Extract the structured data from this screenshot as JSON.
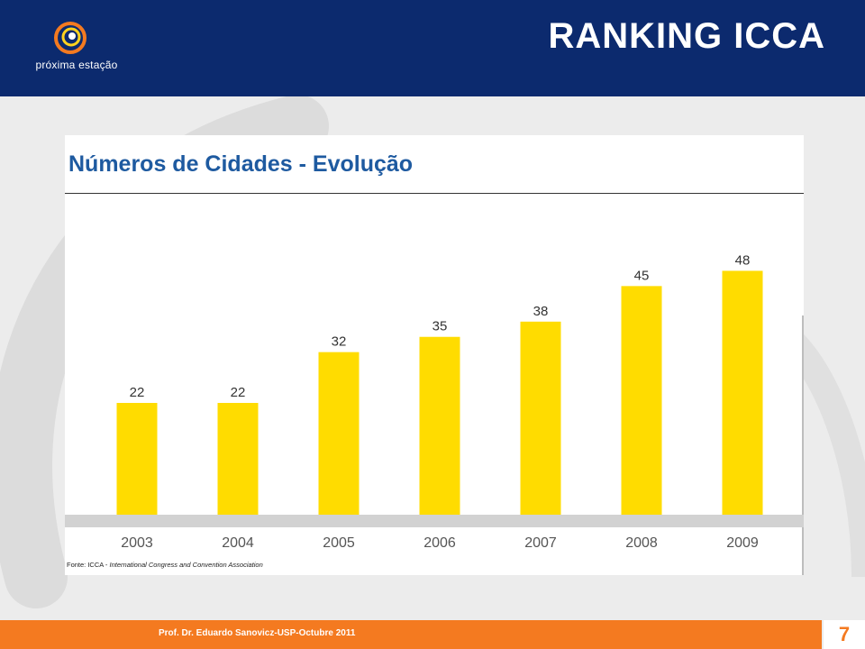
{
  "header": {
    "logo_text": "próxima estação",
    "title": "RANKING ICCA"
  },
  "chart_data": {
    "type": "bar",
    "title": "Números de Cidades - Evolução",
    "categories": [
      "2003",
      "2004",
      "2005",
      "2006",
      "2007",
      "2008",
      "2009"
    ],
    "values": [
      22,
      22,
      32,
      35,
      38,
      45,
      48
    ],
    "ylim": [
      0,
      55
    ],
    "grid": false,
    "bar_color": "#ffdc00",
    "source_label": "Fonte: ICCA -",
    "source_text": "International Congress and Convention Association"
  },
  "footer": {
    "credit": "Prof. Dr. Eduardo Sanovicz-USP-Octubre 2011",
    "page_number": "7"
  },
  "colors": {
    "header_bg": "#0c2a6e",
    "footer_bg": "#f47a20",
    "chart_title": "#1e5aa0"
  }
}
